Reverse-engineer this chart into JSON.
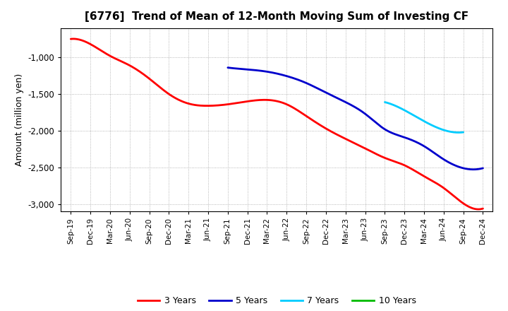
{
  "title": "[6776]  Trend of Mean of 12-Month Moving Sum of Investing CF",
  "ylabel": "Amount (million yen)",
  "ylim": [
    -3100,
    -600
  ],
  "yticks": [
    -3000,
    -2500,
    -2000,
    -1500,
    -1000
  ],
  "background_color": "#ffffff",
  "grid_color": "#999999",
  "x_labels": [
    "Sep-19",
    "Dec-19",
    "Mar-20",
    "Jun-20",
    "Sep-20",
    "Dec-20",
    "Mar-21",
    "Jun-21",
    "Sep-21",
    "Dec-21",
    "Mar-22",
    "Jun-22",
    "Sep-22",
    "Dec-22",
    "Mar-23",
    "Jun-23",
    "Sep-23",
    "Dec-23",
    "Mar-24",
    "Jun-24",
    "Sep-24",
    "Dec-24"
  ],
  "series": [
    {
      "label": "3 Years",
      "color": "#ff0000",
      "linewidth": 2.0,
      "x_indices": [
        0,
        1,
        2,
        3,
        4,
        5,
        6,
        7,
        8,
        9,
        10,
        11,
        12,
        13,
        14,
        15,
        16,
        17,
        18,
        19,
        20,
        21
      ],
      "values": [
        -750,
        -820,
        -980,
        -1110,
        -1290,
        -1500,
        -1630,
        -1660,
        -1640,
        -1600,
        -1580,
        -1640,
        -1800,
        -1970,
        -2110,
        -2240,
        -2370,
        -2470,
        -2620,
        -2780,
        -2990,
        -3060
      ]
    },
    {
      "label": "5 Years",
      "color": "#0000cc",
      "linewidth": 2.0,
      "x_indices": [
        8,
        9,
        10,
        11,
        12,
        13,
        14,
        15,
        16,
        17,
        18,
        19,
        20,
        21
      ],
      "values": [
        -1140,
        -1165,
        -1195,
        -1255,
        -1350,
        -1480,
        -1610,
        -1770,
        -1980,
        -2090,
        -2210,
        -2390,
        -2510,
        -2510
      ]
    },
    {
      "label": "7 Years",
      "color": "#00ccff",
      "linewidth": 2.0,
      "x_indices": [
        16,
        17,
        18,
        19,
        20
      ],
      "values": [
        -1610,
        -1720,
        -1870,
        -1990,
        -2020
      ]
    },
    {
      "label": "10 Years",
      "color": "#00bb00",
      "linewidth": 2.0,
      "x_indices": [
        20
      ],
      "values": [
        -2020
      ]
    }
  ],
  "legend_colors": [
    "#ff0000",
    "#0000cc",
    "#00ccff",
    "#00bb00"
  ],
  "legend_labels": [
    "3 Years",
    "5 Years",
    "7 Years",
    "10 Years"
  ]
}
